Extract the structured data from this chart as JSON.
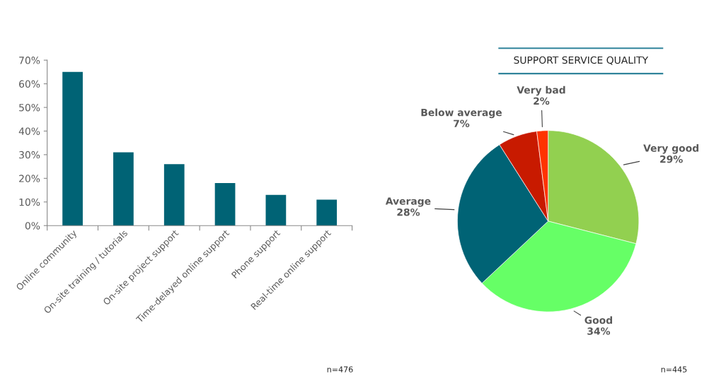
{
  "chart_data": [
    {
      "type": "bar",
      "categories": [
        "Online community",
        "On-site training / tutorials",
        "On-site project support",
        "Time-delayed online support",
        "Phone support",
        "Real-time online support"
      ],
      "values": [
        65,
        31,
        26,
        18,
        13,
        11
      ],
      "color": "#006375",
      "ylim": [
        0,
        70
      ],
      "yticks": [
        {
          "value": 0,
          "label": "0%"
        },
        {
          "value": 10,
          "label": "10%"
        },
        {
          "value": 20,
          "label": "20%"
        },
        {
          "value": 30,
          "label": "30%"
        },
        {
          "value": 40,
          "label": "40%"
        },
        {
          "value": 50,
          "label": "50%"
        },
        {
          "value": 60,
          "label": "60%"
        },
        {
          "value": 70,
          "label": "70%"
        }
      ],
      "grid": false,
      "annotations": [
        "n=476"
      ]
    },
    {
      "type": "pie",
      "title": "SUPPORT SERVICE QUALITY",
      "categories": [
        "Very good",
        "Good",
        "Average",
        "Below average",
        "Very bad"
      ],
      "values": [
        29,
        34,
        28,
        7,
        2
      ],
      "colors": [
        "#92d050",
        "#66ff66",
        "#006375",
        "#c81a00",
        "#ff3300"
      ],
      "value_labels": [
        "29%",
        "34%",
        "28%",
        "7%",
        "2%"
      ],
      "annotations": [
        "n=445"
      ]
    }
  ]
}
